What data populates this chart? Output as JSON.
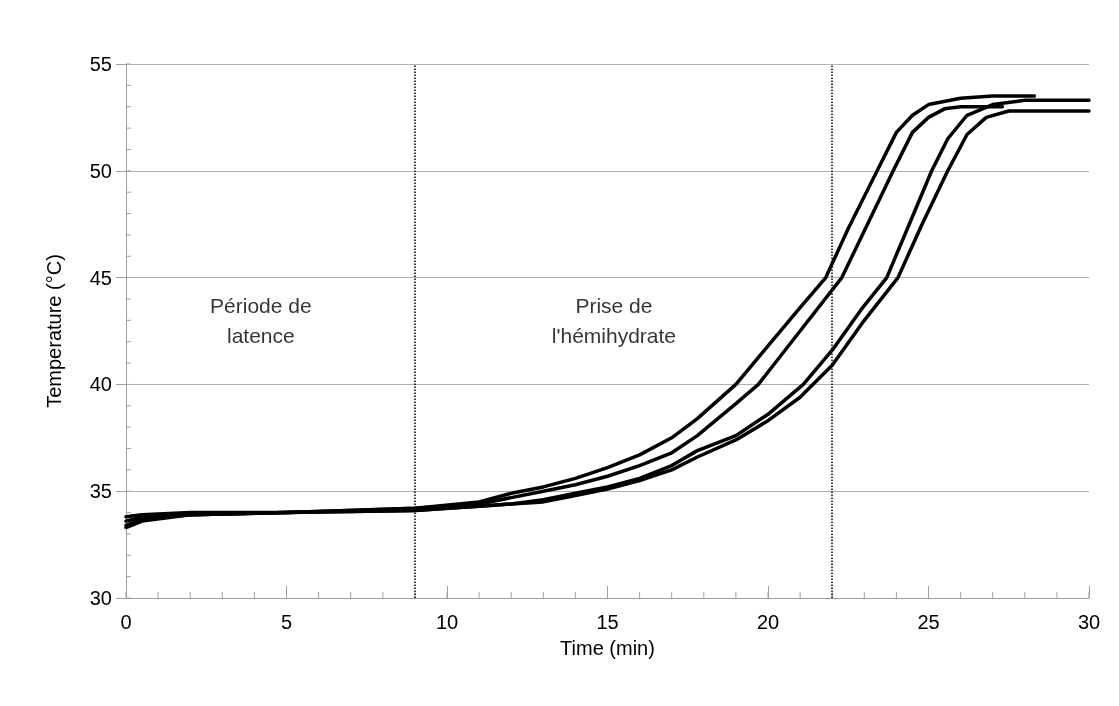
{
  "chart_data": {
    "type": "line",
    "xlabel": "Time (min)",
    "ylabel": "Temperature (°C)",
    "xlim": [
      0,
      30
    ],
    "xticks": [
      0,
      5,
      10,
      15,
      20,
      25,
      30
    ],
    "ylim": [
      30,
      55
    ],
    "yticks": [
      30,
      35,
      40,
      45,
      50,
      55
    ],
    "grid": "y",
    "marker": "none",
    "line_style": "solid",
    "series": [
      {
        "color": "#000000",
        "x": [
          0,
          0.5,
          2,
          5,
          9,
          11,
          12,
          13,
          14,
          15,
          16,
          17,
          17.8,
          19,
          20,
          21,
          21.8,
          22.5,
          23.4,
          24,
          24.5,
          25,
          26,
          27,
          28.3
        ],
        "values": [
          33.8,
          33.9,
          34.0,
          34.0,
          34.2,
          34.5,
          34.9,
          35.2,
          35.6,
          36.1,
          36.7,
          37.5,
          38.4,
          40.0,
          41.8,
          43.6,
          45.0,
          47.3,
          50.0,
          51.8,
          52.6,
          53.1,
          53.4,
          53.5,
          53.5
        ]
      },
      {
        "color": "#000000",
        "x": [
          0,
          0.5,
          2,
          5,
          9,
          11,
          12,
          13,
          14,
          15,
          16,
          17,
          17.8,
          19,
          19.7,
          21,
          22.3,
          23.1,
          23.9,
          24.5,
          25,
          25.5,
          26,
          27.3
        ],
        "values": [
          33.6,
          33.8,
          33.9,
          34.0,
          34.2,
          34.4,
          34.7,
          35.0,
          35.3,
          35.7,
          36.2,
          36.8,
          37.6,
          39.1,
          40.0,
          42.5,
          45.0,
          47.5,
          50.0,
          51.8,
          52.5,
          52.9,
          53.0,
          53.0
        ]
      },
      {
        "color": "#000000",
        "x": [
          0,
          0.5,
          2,
          5,
          9,
          11,
          12,
          13,
          14,
          15,
          16,
          17,
          17.8,
          19,
          20,
          21.1,
          22,
          22.9,
          23.7,
          24.4,
          25.1,
          25.6,
          26.2,
          27,
          28,
          30
        ],
        "values": [
          33.4,
          33.7,
          33.9,
          34.0,
          34.1,
          34.3,
          34.4,
          34.6,
          34.9,
          35.2,
          35.6,
          36.2,
          36.9,
          37.6,
          38.6,
          40.0,
          41.6,
          43.5,
          45.0,
          47.5,
          50.0,
          51.5,
          52.6,
          53.1,
          53.3,
          53.3
        ]
      },
      {
        "color": "#000000",
        "x": [
          0,
          0.5,
          2,
          5,
          9,
          11,
          12,
          13,
          14,
          15,
          16,
          17,
          17.8,
          19,
          20,
          21,
          22,
          23,
          24.05,
          24.8,
          25.6,
          26.2,
          26.8,
          27.5,
          30
        ],
        "values": [
          33.3,
          33.6,
          33.9,
          34.0,
          34.1,
          34.3,
          34.4,
          34.5,
          34.8,
          35.1,
          35.5,
          36.0,
          36.6,
          37.4,
          38.3,
          39.4,
          40.9,
          43.0,
          45.0,
          47.5,
          50.0,
          51.7,
          52.5,
          52.8,
          52.8
        ]
      }
    ],
    "ref_lines": [
      {
        "axis": "x",
        "value": 9,
        "color": "#000000",
        "line_style": "dotted"
      },
      {
        "axis": "x",
        "value": 22,
        "color": "#000000",
        "line_style": "dotted"
      }
    ],
    "annotations": [
      "Période de\nlatence",
      "Prise de\nl'hémihydrate"
    ]
  }
}
